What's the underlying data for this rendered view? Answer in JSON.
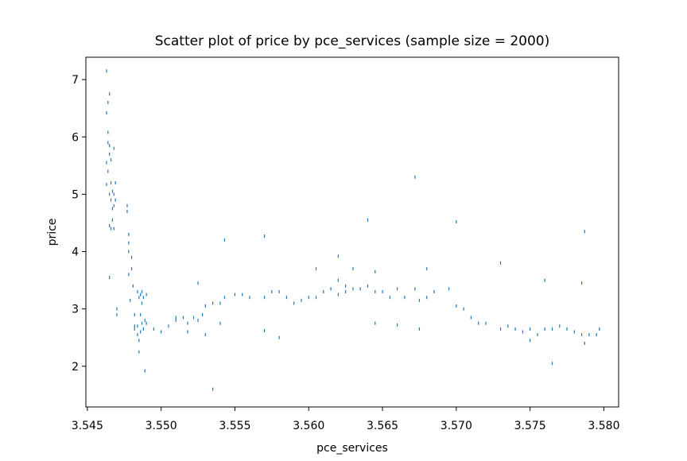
{
  "chart_data": {
    "type": "scatter",
    "title": "Scatter plot of price by pce_services (sample size = 2000)",
    "x_label": "pce_services",
    "y_label": "price",
    "color": "#1f77b4",
    "x": [
      3.5463,
      3.5463,
      3.5463,
      3.5463,
      3.5464,
      3.5464,
      3.5464,
      3.5464,
      3.5465,
      3.5465,
      3.5465,
      3.5465,
      3.5465,
      3.5465,
      3.5466,
      3.5466,
      3.5466,
      3.5466,
      3.5467,
      3.5467,
      3.5467,
      3.5468,
      3.5468,
      3.5468,
      3.5468,
      3.5469,
      3.5469,
      3.547,
      3.547,
      3.5477,
      3.5477,
      3.5478,
      3.5478,
      3.5478,
      3.5478,
      3.5479,
      3.548,
      3.548,
      3.5481,
      3.5482,
      3.5482,
      3.5482,
      3.5484,
      3.5484,
      3.5484,
      3.5485,
      3.5485,
      3.5485,
      3.5486,
      3.5486,
      3.5486,
      3.5487,
      3.5487,
      3.5487,
      3.5488,
      3.5488,
      3.5489,
      3.5489,
      3.549,
      3.549,
      3.5495,
      3.55,
      3.5505,
      3.551,
      3.551,
      3.5515,
      3.5518,
      3.5518,
      3.5522,
      3.5525,
      3.5525,
      3.5528,
      3.553,
      3.553,
      3.5535,
      3.5535,
      3.554,
      3.554,
      3.5543,
      3.5543,
      3.555,
      3.5555,
      3.556,
      3.557,
      3.557,
      3.557,
      3.5575,
      3.558,
      3.558,
      3.5585,
      3.559,
      3.5595,
      3.56,
      3.5605,
      3.5605,
      3.561,
      3.5615,
      3.562,
      3.562,
      3.562,
      3.5625,
      3.5625,
      3.563,
      3.563,
      3.5635,
      3.564,
      3.564,
      3.5645,
      3.5645,
      3.5645,
      3.565,
      3.5655,
      3.566,
      3.566,
      3.5665,
      3.5672,
      3.5672,
      3.5675,
      3.5675,
      3.568,
      3.568,
      3.5685,
      3.5695,
      3.57,
      3.57,
      3.5705,
      3.571,
      3.5715,
      3.572,
      3.573,
      3.573,
      3.5735,
      3.574,
      3.5745,
      3.575,
      3.575,
      3.5755,
      3.576,
      3.576,
      3.5765,
      3.5765,
      3.577,
      3.5775,
      3.578,
      3.5785,
      3.5785,
      3.5787,
      3.5787,
      3.579,
      3.5795,
      3.5797
    ],
    "values": [
      7.15,
      6.42,
      5.55,
      5.17,
      6.6,
      6.08,
      5.9,
      5.4,
      6.75,
      5.85,
      5.7,
      5.0,
      4.45,
      3.55,
      5.6,
      5.2,
      4.9,
      4.4,
      5.05,
      4.75,
      4.55,
      5.8,
      5.0,
      4.8,
      4.4,
      5.2,
      4.9,
      3.0,
      2.9,
      4.8,
      4.7,
      4.3,
      4.15,
      4.0,
      3.6,
      3.15,
      3.9,
      3.7,
      3.4,
      2.9,
      2.7,
      2.65,
      3.3,
      2.7,
      2.55,
      2.45,
      2.25,
      3.2,
      2.9,
      2.6,
      3.25,
      2.75,
      3.3,
      3.1,
      3.2,
      2.65,
      1.92,
      2.8,
      2.75,
      3.25,
      2.65,
      2.6,
      2.7,
      2.85,
      2.8,
      2.85,
      2.75,
      2.6,
      2.85,
      3.45,
      2.8,
      2.9,
      3.05,
      2.55,
      3.1,
      1.6,
      3.1,
      2.75,
      4.2,
      3.2,
      3.25,
      3.25,
      3.2,
      4.27,
      3.2,
      2.62,
      3.3,
      3.3,
      2.5,
      3.2,
      3.1,
      3.15,
      3.2,
      3.2,
      3.7,
      3.3,
      3.35,
      3.92,
      3.25,
      3.5,
      3.4,
      3.3,
      3.35,
      3.7,
      3.35,
      4.55,
      3.4,
      3.3,
      2.75,
      3.65,
      3.3,
      3.2,
      2.72,
      3.35,
      3.2,
      5.3,
      3.35,
      2.65,
      3.15,
      3.7,
      3.2,
      3.3,
      3.35,
      4.52,
      3.05,
      3.0,
      2.85,
      2.75,
      2.75,
      2.65,
      3.8,
      2.7,
      2.65,
      2.6,
      2.45,
      2.65,
      2.55,
      3.5,
      2.65,
      2.65,
      2.05,
      2.7,
      2.65,
      2.6,
      3.45,
      2.55,
      4.35,
      2.4,
      2.55,
      2.55,
      2.65
    ],
    "xlim": [
      3.5449,
      3.581
    ],
    "ylim": [
      1.29,
      7.39
    ],
    "xticks": [
      3.545,
      {
        "value": 3.55,
        "label": "3.550"
      },
      3.555,
      {
        "value": 3.56,
        "label": "3.560"
      },
      3.565,
      {
        "value": 3.57,
        "label": "3.570"
      },
      3.575,
      {
        "value": 3.58,
        "label": "3.580"
      }
    ],
    "yticks": [
      2,
      3,
      4,
      5,
      6,
      7
    ]
  }
}
